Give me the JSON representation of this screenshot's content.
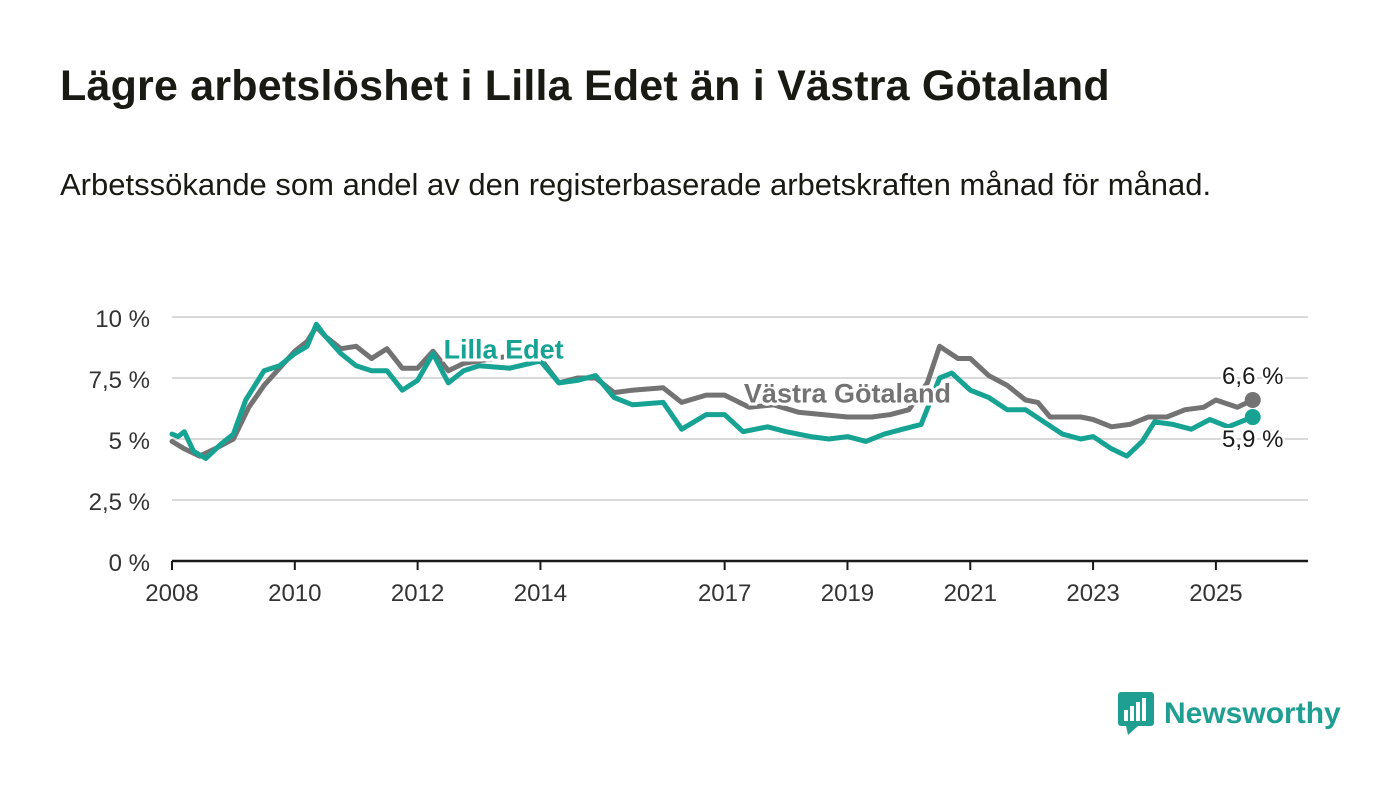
{
  "header": {
    "title": "Lägre arbetslöshet i Lilla Edet än i Västra Götaland",
    "subtitle": "Arbetssökande som andel av den registerbaserade arbetskraften månad för månad."
  },
  "brand": {
    "name": "Newsworthy",
    "icon": "newsworthy-logo-icon",
    "color": "#1f9e92"
  },
  "chart_data": {
    "type": "line",
    "ylim": [
      0,
      10
    ],
    "xlim": [
      2008,
      2026.5
    ],
    "yticks": [
      0,
      2.5,
      5,
      7.5,
      10
    ],
    "ytick_labels": [
      "0 %",
      "2,5 %",
      "5 %",
      "7,5 %",
      "10 %"
    ],
    "xticks": [
      2008,
      2010,
      2012,
      2014,
      2017,
      2019,
      2021,
      2023,
      2025
    ],
    "xtick_labels": [
      "2008",
      "2010",
      "2012",
      "2014",
      "2017",
      "2019",
      "2021",
      "2023",
      "2025"
    ],
    "grid": true,
    "series": [
      {
        "name": "Västra Götaland",
        "color": "#737373",
        "end_label": "6,6 %",
        "points": [
          [
            2008.0,
            4.9
          ],
          [
            2008.2,
            4.6
          ],
          [
            2008.45,
            4.3
          ],
          [
            2008.7,
            4.6
          ],
          [
            2009.0,
            5.0
          ],
          [
            2009.25,
            6.3
          ],
          [
            2009.5,
            7.2
          ],
          [
            2009.75,
            7.9
          ],
          [
            2010.0,
            8.6
          ],
          [
            2010.2,
            9.0
          ],
          [
            2010.35,
            9.6
          ],
          [
            2010.5,
            9.2
          ],
          [
            2010.75,
            8.7
          ],
          [
            2011.0,
            8.8
          ],
          [
            2011.25,
            8.3
          ],
          [
            2011.5,
            8.7
          ],
          [
            2011.75,
            7.9
          ],
          [
            2012.0,
            7.9
          ],
          [
            2012.25,
            8.6
          ],
          [
            2012.5,
            7.8
          ],
          [
            2012.75,
            8.1
          ],
          [
            2013.0,
            8.2
          ],
          [
            2013.5,
            8.4
          ],
          [
            2014.0,
            8.3
          ],
          [
            2014.3,
            7.3
          ],
          [
            2014.6,
            7.5
          ],
          [
            2014.9,
            7.5
          ],
          [
            2015.2,
            6.9
          ],
          [
            2015.5,
            7.0
          ],
          [
            2016.0,
            7.1
          ],
          [
            2016.3,
            6.5
          ],
          [
            2016.7,
            6.8
          ],
          [
            2017.0,
            6.8
          ],
          [
            2017.4,
            6.3
          ],
          [
            2017.8,
            6.4
          ],
          [
            2018.2,
            6.1
          ],
          [
            2018.6,
            6.0
          ],
          [
            2019.0,
            5.9
          ],
          [
            2019.4,
            5.9
          ],
          [
            2019.7,
            6.0
          ],
          [
            2020.0,
            6.2
          ],
          [
            2020.3,
            7.3
          ],
          [
            2020.5,
            8.8
          ],
          [
            2020.8,
            8.3
          ],
          [
            2021.0,
            8.3
          ],
          [
            2021.3,
            7.6
          ],
          [
            2021.6,
            7.2
          ],
          [
            2021.9,
            6.6
          ],
          [
            2022.1,
            6.5
          ],
          [
            2022.3,
            5.9
          ],
          [
            2022.8,
            5.9
          ],
          [
            2023.0,
            5.8
          ],
          [
            2023.3,
            5.5
          ],
          [
            2023.6,
            5.6
          ],
          [
            2023.9,
            5.9
          ],
          [
            2024.2,
            5.9
          ],
          [
            2024.5,
            6.2
          ],
          [
            2024.8,
            6.3
          ],
          [
            2025.0,
            6.6
          ],
          [
            2025.35,
            6.3
          ],
          [
            2025.6,
            6.6
          ]
        ]
      },
      {
        "name": "Lilla Edet",
        "color": "#16a394",
        "end_label": "5,9 %",
        "points": [
          [
            2008.0,
            5.2
          ],
          [
            2008.1,
            5.1
          ],
          [
            2008.2,
            5.3
          ],
          [
            2008.35,
            4.5
          ],
          [
            2008.55,
            4.2
          ],
          [
            2008.8,
            4.8
          ],
          [
            2009.0,
            5.2
          ],
          [
            2009.2,
            6.6
          ],
          [
            2009.5,
            7.8
          ],
          [
            2009.75,
            8.0
          ],
          [
            2010.0,
            8.5
          ],
          [
            2010.2,
            8.8
          ],
          [
            2010.35,
            9.7
          ],
          [
            2010.5,
            9.2
          ],
          [
            2010.75,
            8.5
          ],
          [
            2011.0,
            8.0
          ],
          [
            2011.25,
            7.8
          ],
          [
            2011.5,
            7.8
          ],
          [
            2011.75,
            7.0
          ],
          [
            2012.0,
            7.4
          ],
          [
            2012.25,
            8.5
          ],
          [
            2012.5,
            7.3
          ],
          [
            2012.75,
            7.8
          ],
          [
            2013.0,
            8.0
          ],
          [
            2013.5,
            7.9
          ],
          [
            2014.0,
            8.2
          ],
          [
            2014.3,
            7.3
          ],
          [
            2014.6,
            7.4
          ],
          [
            2014.9,
            7.6
          ],
          [
            2015.2,
            6.7
          ],
          [
            2015.5,
            6.4
          ],
          [
            2016.0,
            6.5
          ],
          [
            2016.3,
            5.4
          ],
          [
            2016.7,
            6.0
          ],
          [
            2017.0,
            6.0
          ],
          [
            2017.3,
            5.3
          ],
          [
            2017.7,
            5.5
          ],
          [
            2018.0,
            5.3
          ],
          [
            2018.4,
            5.1
          ],
          [
            2018.7,
            5.0
          ],
          [
            2019.0,
            5.1
          ],
          [
            2019.3,
            4.9
          ],
          [
            2019.6,
            5.2
          ],
          [
            2019.9,
            5.4
          ],
          [
            2020.2,
            5.6
          ],
          [
            2020.5,
            7.5
          ],
          [
            2020.7,
            7.7
          ],
          [
            2021.0,
            7.0
          ],
          [
            2021.3,
            6.7
          ],
          [
            2021.6,
            6.2
          ],
          [
            2021.9,
            6.2
          ],
          [
            2022.2,
            5.7
          ],
          [
            2022.5,
            5.2
          ],
          [
            2022.8,
            5.0
          ],
          [
            2023.0,
            5.1
          ],
          [
            2023.3,
            4.6
          ],
          [
            2023.55,
            4.3
          ],
          [
            2023.8,
            4.9
          ],
          [
            2024.0,
            5.7
          ],
          [
            2024.3,
            5.6
          ],
          [
            2024.6,
            5.4
          ],
          [
            2024.9,
            5.8
          ],
          [
            2025.2,
            5.5
          ],
          [
            2025.6,
            5.9
          ]
        ]
      }
    ],
    "annotations": [
      {
        "text": "Lilla Edet",
        "series": "Lilla Edet",
        "x": 2013.4,
        "y": 8.3
      },
      {
        "text": "Västra Götaland",
        "series": "Västra Götaland",
        "x": 2019.0,
        "y": 6.5
      }
    ]
  }
}
